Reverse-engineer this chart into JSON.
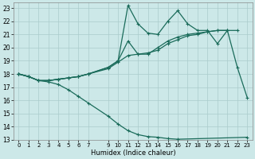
{
  "xlabel": "Humidex (Indice chaleur)",
  "bg_color": "#cce8e8",
  "grid_color": "#aacccc",
  "line_color": "#1a6b5a",
  "xlim": [
    -0.5,
    23.5
  ],
  "ylim": [
    13,
    23.4
  ],
  "xticks": [
    0,
    1,
    2,
    3,
    4,
    5,
    6,
    7,
    9,
    10,
    11,
    12,
    13,
    14,
    15,
    16,
    17,
    18,
    19,
    20,
    21,
    22,
    23
  ],
  "yticks": [
    13,
    14,
    15,
    16,
    17,
    18,
    19,
    20,
    21,
    22,
    23
  ],
  "series": [
    {
      "x": [
        0,
        1,
        2,
        3,
        4,
        5,
        6,
        7,
        9,
        10,
        11,
        12,
        13,
        14,
        15,
        16,
        17,
        18,
        19,
        20,
        21,
        22,
        23
      ],
      "y": [
        18.0,
        17.8,
        17.5,
        17.5,
        17.6,
        17.7,
        17.8,
        18.0,
        18.5,
        19.0,
        23.2,
        21.8,
        21.1,
        21.0,
        22.0,
        22.8,
        21.8,
        21.3,
        21.3,
        20.3,
        21.3,
        18.5,
        16.2
      ]
    },
    {
      "x": [
        0,
        1,
        2,
        3,
        4,
        5,
        6,
        7,
        9,
        10,
        11,
        12,
        13,
        14,
        15,
        16,
        17,
        18,
        19,
        20,
        21
      ],
      "y": [
        18.0,
        17.8,
        17.5,
        17.5,
        17.6,
        17.7,
        17.8,
        18.0,
        18.5,
        19.0,
        20.5,
        19.5,
        19.5,
        20.0,
        20.5,
        20.8,
        21.0,
        21.1,
        21.2,
        21.3,
        21.3
      ]
    },
    {
      "x": [
        0,
        1,
        2,
        3,
        4,
        5,
        6,
        7,
        9,
        10,
        11,
        12,
        13,
        14,
        15,
        16,
        17,
        18,
        19,
        20,
        21,
        22
      ],
      "y": [
        18.0,
        17.8,
        17.5,
        17.5,
        17.6,
        17.7,
        17.8,
        18.0,
        18.4,
        18.9,
        19.4,
        19.5,
        19.6,
        19.8,
        20.3,
        20.6,
        20.9,
        21.0,
        21.2,
        21.3,
        21.3,
        21.3
      ]
    },
    {
      "x": [
        0,
        1,
        2,
        3,
        4,
        5,
        6,
        7,
        9,
        10,
        11,
        12,
        13,
        14,
        15,
        16,
        23
      ],
      "y": [
        18.0,
        17.8,
        17.5,
        17.4,
        17.2,
        16.8,
        16.3,
        15.8,
        14.8,
        14.2,
        13.7,
        13.4,
        13.25,
        13.2,
        13.1,
        13.05,
        13.2
      ]
    }
  ]
}
